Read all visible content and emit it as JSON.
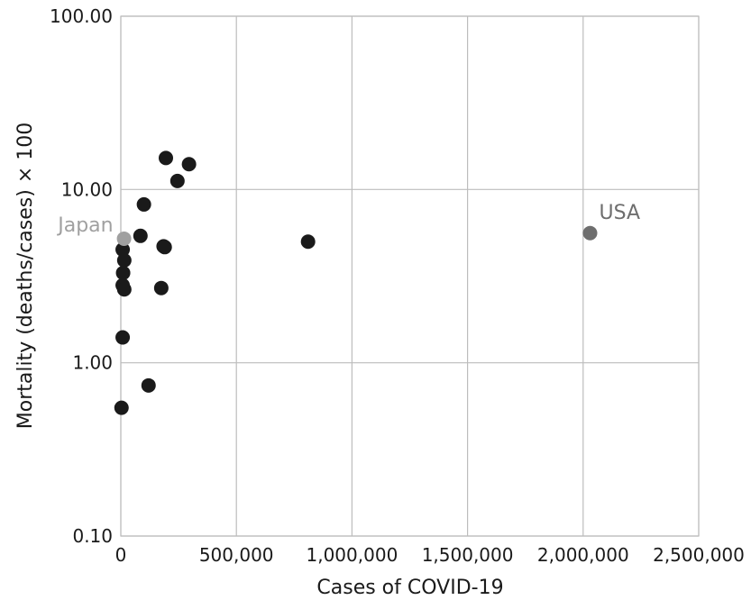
{
  "chart_data": {
    "type": "scatter",
    "title": "",
    "xlabel": "Cases of COVID-19",
    "ylabel": "Mortality (deaths/cases) × 100",
    "xlim": [
      0,
      2500000
    ],
    "ylim": [
      0.1,
      100
    ],
    "yscale": "log",
    "grid": true,
    "x_ticks": [
      0,
      500000,
      1000000,
      1500000,
      2000000,
      2500000
    ],
    "x_tick_labels": [
      "0",
      "500,000",
      "1,000,000",
      "1,500,000",
      "2,000,000",
      "2,500,000"
    ],
    "y_ticks": [
      0.1,
      1,
      10,
      100
    ],
    "y_tick_labels": [
      "0.10",
      "1.00",
      "10.00",
      "100.00"
    ],
    "colors": {
      "default": "#1a1a1a",
      "japan": "#a0a0a0",
      "usa": "#6e6e6e",
      "grid": "#bdbdbd"
    },
    "series": [
      {
        "points": [
          {
            "x": 195000,
            "y": 15.2
          },
          {
            "x": 295000,
            "y": 14.0
          },
          {
            "x": 245000,
            "y": 11.2
          },
          {
            "x": 100000,
            "y": 8.2
          },
          {
            "x": 85000,
            "y": 5.4
          },
          {
            "x": 185000,
            "y": 4.7
          },
          {
            "x": 190000,
            "y": 4.65
          },
          {
            "x": 8000,
            "y": 4.5
          },
          {
            "x": 15000,
            "y": 3.9
          },
          {
            "x": 10000,
            "y": 3.3
          },
          {
            "x": 8000,
            "y": 2.8
          },
          {
            "x": 15000,
            "y": 2.65
          },
          {
            "x": 175000,
            "y": 2.7
          },
          {
            "x": 8000,
            "y": 1.4
          },
          {
            "x": 120000,
            "y": 0.74
          },
          {
            "x": 3000,
            "y": 0.55
          },
          {
            "x": 810000,
            "y": 5.0
          }
        ]
      }
    ],
    "highlighted": [
      {
        "label": "Japan",
        "x": 14000,
        "y": 5.2,
        "color": "#a0a0a0"
      },
      {
        "label": "USA",
        "x": 2030000,
        "y": 5.6,
        "color": "#6e6e6e"
      }
    ]
  }
}
